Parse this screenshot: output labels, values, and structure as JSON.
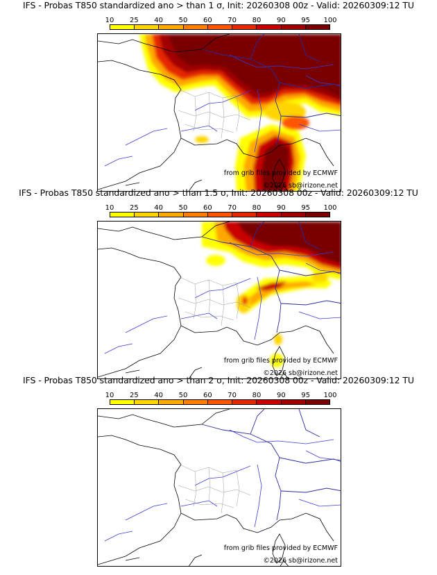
{
  "colorbar": {
    "ticks": [
      "10",
      "25",
      "40",
      "50",
      "60",
      "70",
      "80",
      "90",
      "95",
      "100"
    ],
    "colors": [
      "#ffff00",
      "#ffd400",
      "#ffa800",
      "#ff8000",
      "#ff5500",
      "#e62800",
      "#c80000",
      "#a00000",
      "#780000"
    ]
  },
  "panels": [
    {
      "title": "IFS - Probas T850  standardized ano > than 1 σ, Init: 20260308 00z - Valid: 20260309:12 TU",
      "threshold_sigma": 1,
      "credit_source": "from grib files provided by ECMWF",
      "credit_copyright": "©2026 sb@irizone.net"
    },
    {
      "title": "IFS - Probas T850  standardized ano > than 1.5 σ, Init: 20260308 00z - Valid: 20260309:12 TU",
      "threshold_sigma": 1.5,
      "credit_source": "from grib files provided by ECMWF",
      "credit_copyright": "©2026 sb@irizone.net"
    },
    {
      "title": "IFS - Probas T850  standardized ano > than 2 σ, Init: 20260308 00z - Valid: 20260309:12 TU",
      "threshold_sigma": 2,
      "credit_source": "from grib files provided by ECMWF",
      "credit_copyright": "©2026 sb@irizone.net"
    }
  ]
}
